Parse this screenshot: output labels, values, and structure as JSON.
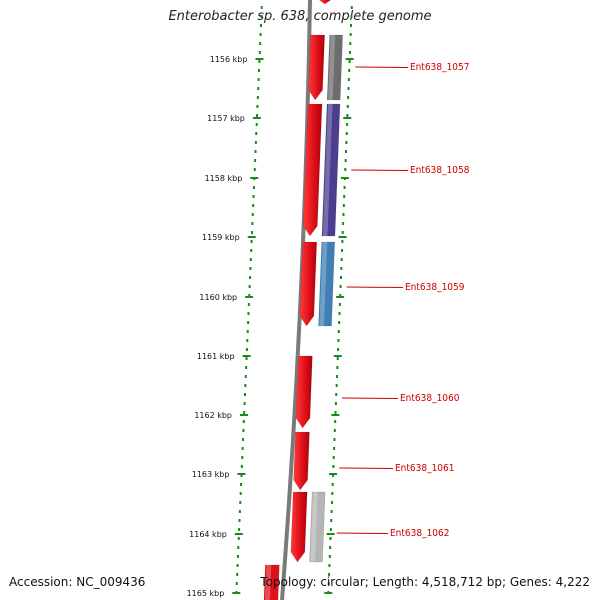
{
  "title": "Enterobacter sp. 638, complete genome",
  "accession": "Accession: NC_009436",
  "summary": "Topology: circular; Length: 4,518,712 bp; Genes: 4,222",
  "colors": {
    "backbone": "#7a7a7a",
    "tick": "#1a8a1a",
    "forward_gene": "#e0101a",
    "label": "#cc0000"
  },
  "scale_ticks": [
    "1156 kbp",
    "1157 kbp",
    "1158 kbp",
    "1159 kbp",
    "1160 kbp",
    "1161 kbp",
    "1162 kbp",
    "1163 kbp",
    "1164 kbp",
    "1165 kbp"
  ],
  "genes": [
    {
      "label": "Ent638_1057",
      "cog_color": "#6d6d6d"
    },
    {
      "label": "Ent638_1058",
      "cog_color": "#4b3d8f"
    },
    {
      "label": "Ent638_1059",
      "cog_color": "#3f7fb4"
    },
    {
      "label": "Ent638_1060",
      "cog_color": ""
    },
    {
      "label": "Ent638_1061",
      "cog_color": ""
    },
    {
      "label": "Ent638_1062",
      "cog_color": "#b5b5b5"
    }
  ]
}
